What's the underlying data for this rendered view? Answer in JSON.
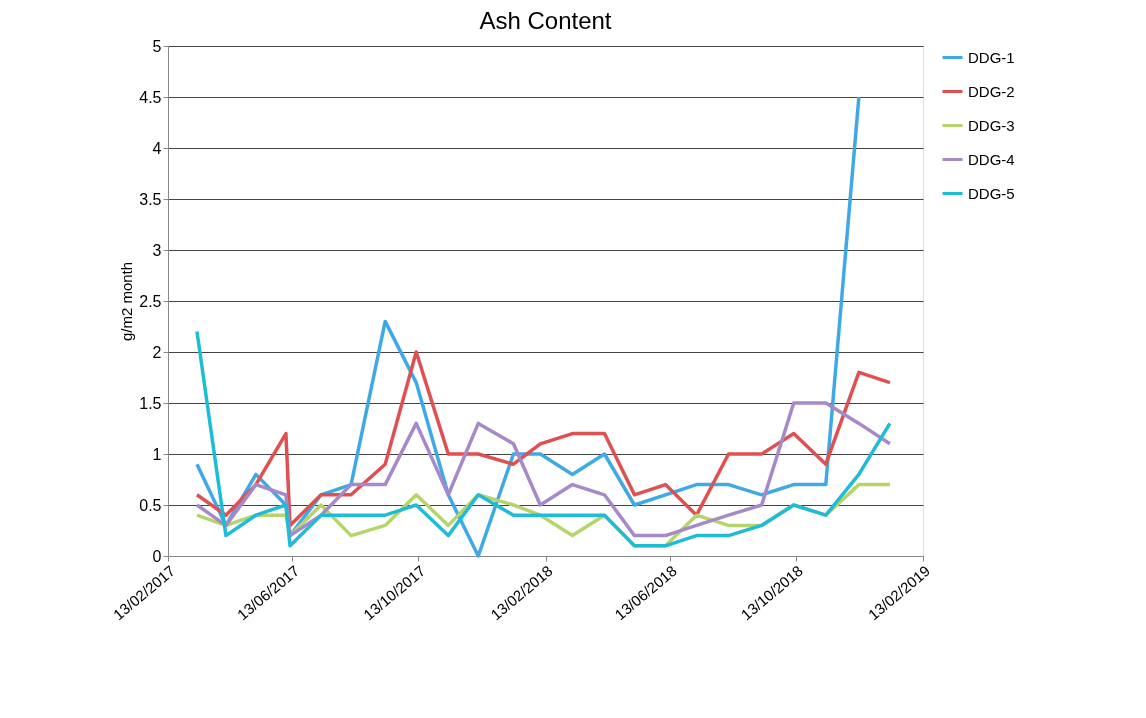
{
  "chart_data": {
    "type": "line",
    "title": "Ash Content",
    "ylabel": "g/m2 month",
    "x": [
      "2017-03-13",
      "2017-04-10",
      "2017-05-09",
      "2017-06-07",
      "2017-06-11",
      "2017-07-11",
      "2017-08-09",
      "2017-09-11",
      "2017-10-11",
      "2017-11-11",
      "2017-12-10",
      "2018-01-13",
      "2018-02-08",
      "2018-03-11",
      "2018-04-11",
      "2018-05-10",
      "2018-06-09",
      "2018-07-09",
      "2018-08-09",
      "2018-09-10",
      "2018-10-11",
      "2018-11-11",
      "2018-12-13",
      "2019-01-12"
    ],
    "series": [
      {
        "name": "DDG-1",
        "color": "#3fa9e8",
        "values": [
          0.9,
          0.3,
          0.8,
          0.5,
          0.2,
          0.6,
          0.7,
          2.3,
          1.7,
          0.6,
          0.0,
          1.0,
          1.0,
          0.8,
          1.0,
          0.5,
          0.6,
          0.7,
          0.7,
          0.6,
          0.7,
          0.7,
          4.5,
          null
        ]
      },
      {
        "name": "DDG-2",
        "color": "#e05050",
        "values": [
          0.6,
          0.4,
          0.7,
          1.2,
          0.3,
          0.6,
          0.6,
          0.9,
          2.0,
          1.0,
          1.0,
          0.9,
          1.1,
          1.2,
          1.2,
          0.6,
          0.7,
          0.4,
          1.0,
          1.0,
          1.2,
          0.9,
          1.8,
          1.7
        ]
      },
      {
        "name": "DDG-3",
        "color": "#b5d56a",
        "values": [
          0.4,
          0.3,
          0.4,
          0.4,
          0.2,
          0.5,
          0.2,
          0.3,
          0.6,
          0.3,
          0.6,
          0.5,
          0.4,
          0.2,
          0.4,
          0.1,
          0.1,
          0.4,
          0.3,
          0.3,
          0.5,
          0.4,
          0.7,
          0.7
        ]
      },
      {
        "name": "DDG-4",
        "color": "#a589c9",
        "values": [
          0.5,
          0.3,
          0.7,
          0.6,
          0.2,
          0.4,
          0.7,
          0.7,
          1.3,
          0.6,
          1.3,
          1.1,
          0.5,
          0.7,
          0.6,
          0.2,
          0.2,
          0.3,
          0.4,
          0.5,
          1.5,
          1.5,
          1.3,
          1.1
        ]
      },
      {
        "name": "DDG-5",
        "color": "#1fbcd8",
        "values": [
          2.2,
          0.2,
          0.4,
          0.5,
          0.1,
          0.4,
          0.4,
          0.4,
          0.5,
          0.2,
          0.6,
          0.4,
          0.4,
          0.4,
          0.4,
          0.1,
          0.1,
          0.2,
          0.2,
          0.3,
          0.5,
          0.4,
          0.8,
          1.3
        ]
      }
    ],
    "xlim": [
      "2017-02-13",
      "2019-02-13"
    ],
    "xticks": [
      {
        "value": "2017-02-13",
        "label": "13/02/2017"
      },
      {
        "value": "2017-06-13",
        "label": "13/06/2017"
      },
      {
        "value": "2017-10-13",
        "label": "13/10/2017"
      },
      {
        "value": "2018-02-13",
        "label": "13/02/2018"
      },
      {
        "value": "2018-06-13",
        "label": "13/06/2018"
      },
      {
        "value": "2018-10-13",
        "label": "13/10/2018"
      },
      {
        "value": "2019-02-13",
        "label": "13/02/2019"
      }
    ],
    "ylim": [
      0,
      5
    ],
    "yticks": [
      0,
      0.5,
      1,
      1.5,
      2,
      2.5,
      3,
      3.5,
      4,
      4.5,
      5
    ],
    "grid": "y",
    "legend": "right",
    "marker": "none",
    "line_style": "solid"
  }
}
